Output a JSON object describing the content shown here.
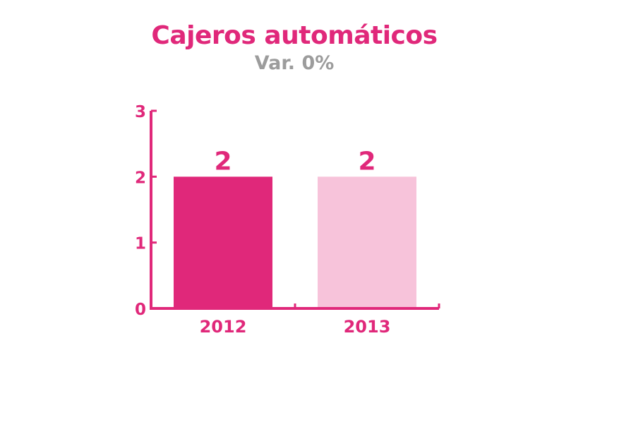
{
  "chart_data": {
    "type": "bar",
    "title": "Cajeros automáticos",
    "subtitle": "Var. 0%",
    "categories": [
      "2012",
      "2013"
    ],
    "values": [
      2,
      2
    ],
    "data_labels": [
      "2",
      "2"
    ],
    "ylim": [
      0,
      3
    ],
    "yticks": [
      0,
      1,
      2,
      3
    ],
    "xlabel": "",
    "ylabel": "",
    "grid": false,
    "legend": "none",
    "colors": {
      "accent": "#e0287a",
      "bars": [
        "#e0287a",
        "#f7c3da"
      ],
      "subtitle": "#9c9c9c"
    }
  }
}
